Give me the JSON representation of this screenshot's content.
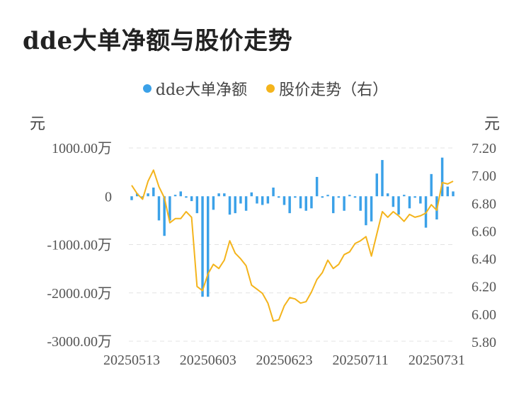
{
  "title": "dde大单净额与股价走势",
  "legend": {
    "series1": "dde大单净额",
    "series2": "股价走势（右）"
  },
  "colors": {
    "bar": "#3ba1e8",
    "line": "#f4b41c",
    "grid": "#e3e3e3"
  },
  "chart_data": {
    "type": "bar+line",
    "left_axis": {
      "unit": "元",
      "ticks": [
        "1000.00万",
        "0",
        "-1000.00万",
        "-2000.00万",
        "-3000.00万"
      ],
      "ylim": [
        -3000,
        1000
      ]
    },
    "right_axis": {
      "unit": "元",
      "ticks": [
        "7.20",
        "7.00",
        "6.80",
        "6.60",
        "6.40",
        "6.20",
        "6.00",
        "5.80"
      ],
      "ylim": [
        5.8,
        7.2
      ]
    },
    "x_tick_labels": [
      "20250513",
      "20250603",
      "20250623",
      "20250711",
      "20250731"
    ],
    "x_tick_indices": [
      0,
      14,
      28,
      42,
      56
    ],
    "series": [
      {
        "name": "dde大单净额",
        "kind": "bar",
        "unit": "万元",
        "values": [
          -80,
          60,
          -30,
          60,
          180,
          -500,
          -820,
          -500,
          30,
          100,
          -30,
          -100,
          -350,
          -2080,
          -2080,
          -280,
          60,
          60,
          -380,
          -350,
          -150,
          -300,
          80,
          -150,
          -180,
          -150,
          180,
          -30,
          -180,
          -350,
          -30,
          -250,
          -300,
          -250,
          400,
          -30,
          30,
          -350,
          -30,
          -300,
          30,
          -30,
          -300,
          -600,
          -520,
          470,
          750,
          60,
          -220,
          -380,
          30,
          -250,
          -30,
          -150,
          -650,
          460,
          -480,
          800,
          200,
          100
        ]
      },
      {
        "name": "股价走势（右）",
        "kind": "line",
        "unit": "元",
        "values": [
          6.93,
          6.87,
          6.83,
          6.96,
          7.04,
          6.92,
          6.84,
          6.66,
          6.69,
          6.69,
          6.74,
          6.7,
          6.2,
          6.17,
          6.29,
          6.36,
          6.33,
          6.39,
          6.53,
          6.44,
          6.4,
          6.35,
          6.21,
          6.18,
          6.15,
          6.08,
          5.95,
          5.96,
          6.06,
          6.12,
          6.11,
          6.08,
          6.09,
          6.16,
          6.25,
          6.3,
          6.39,
          6.33,
          6.36,
          6.43,
          6.45,
          6.51,
          6.53,
          6.56,
          6.42,
          6.58,
          6.74,
          6.7,
          6.74,
          6.71,
          6.67,
          6.72,
          6.7,
          6.71,
          6.73,
          6.79,
          6.75,
          6.95,
          6.94,
          6.96
        ]
      }
    ],
    "grid": true,
    "legend_position": "top-center"
  }
}
